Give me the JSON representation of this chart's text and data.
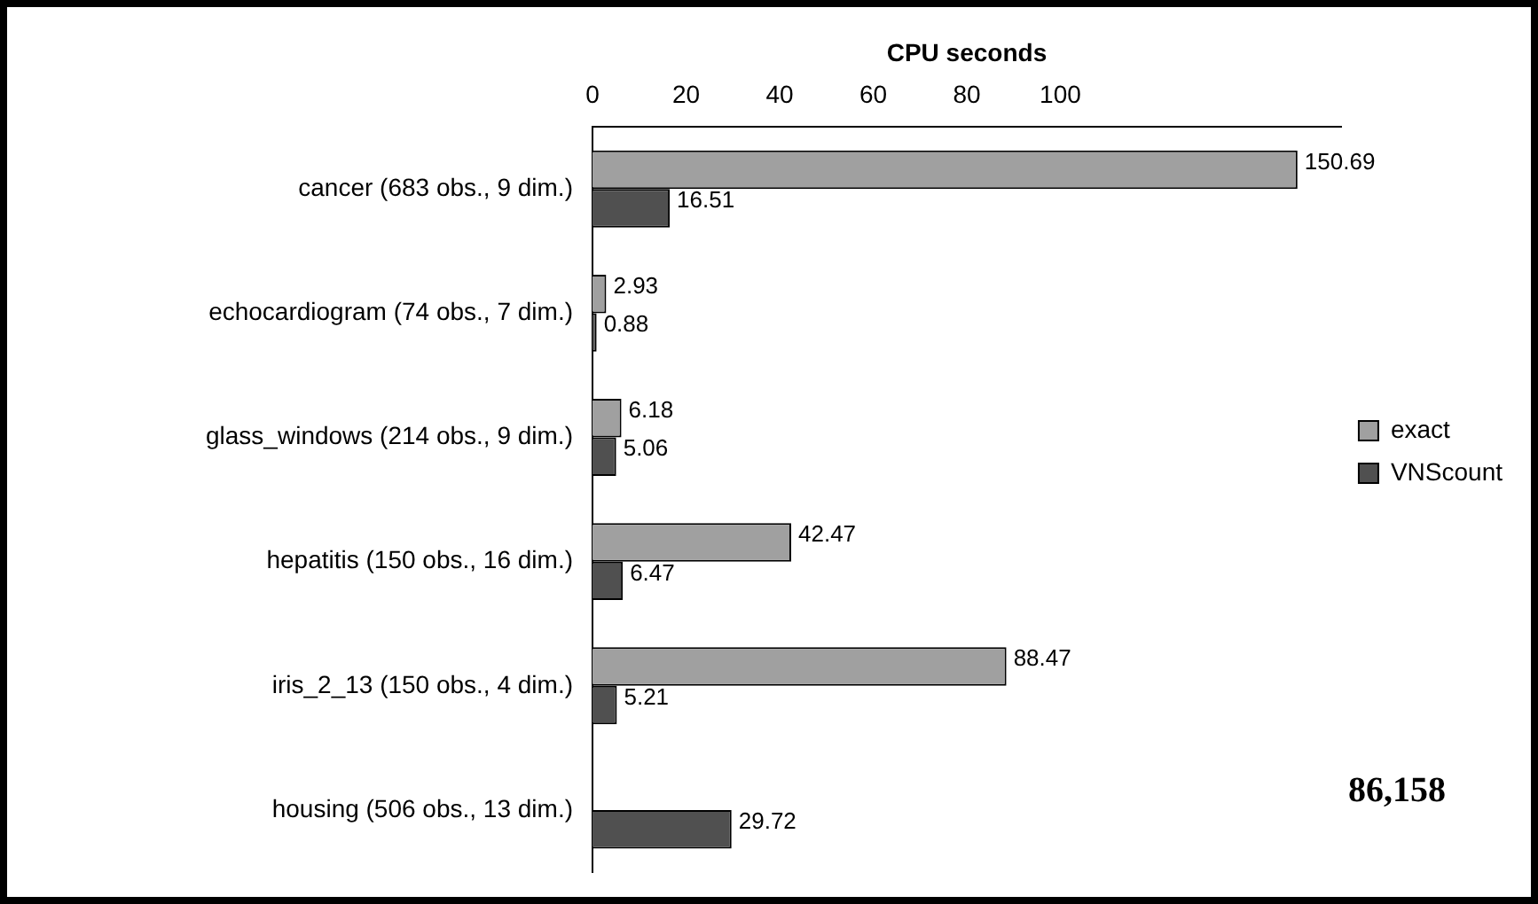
{
  "chart_data": {
    "type": "bar",
    "orientation": "horizontal",
    "xlabel": "CPU seconds",
    "categories": [
      "cancer (683 obs., 9 dim.)",
      "echocardiogram (74 obs., 7 dim.)",
      "glass_windows (214 obs., 9 dim.)",
      "hepatitis (150 obs., 16 dim.)",
      "iris_2_13 (150 obs., 4 dim.)",
      "housing (506 obs., 13 dim.)"
    ],
    "series": [
      {
        "name": "exact",
        "color": "#a0a0a0",
        "values": [
          150.69,
          2.93,
          6.18,
          42.47,
          88.47,
          null
        ],
        "value_labels": [
          "150.69",
          "2.93",
          "6.18",
          "42.47",
          "88.47",
          null
        ]
      },
      {
        "name": "VNScount",
        "color": "#505050",
        "values": [
          16.51,
          0.88,
          5.06,
          6.47,
          5.21,
          29.72
        ],
        "value_labels": [
          "16.51",
          "0.88",
          "5.06",
          "6.47",
          "5.21",
          "29.72"
        ]
      }
    ],
    "annotations": [
      "86,158"
    ],
    "xlim": [
      0,
      160
    ],
    "xticks": [
      0,
      20,
      40,
      60,
      80,
      100
    ],
    "grid": false,
    "legend": "right"
  }
}
